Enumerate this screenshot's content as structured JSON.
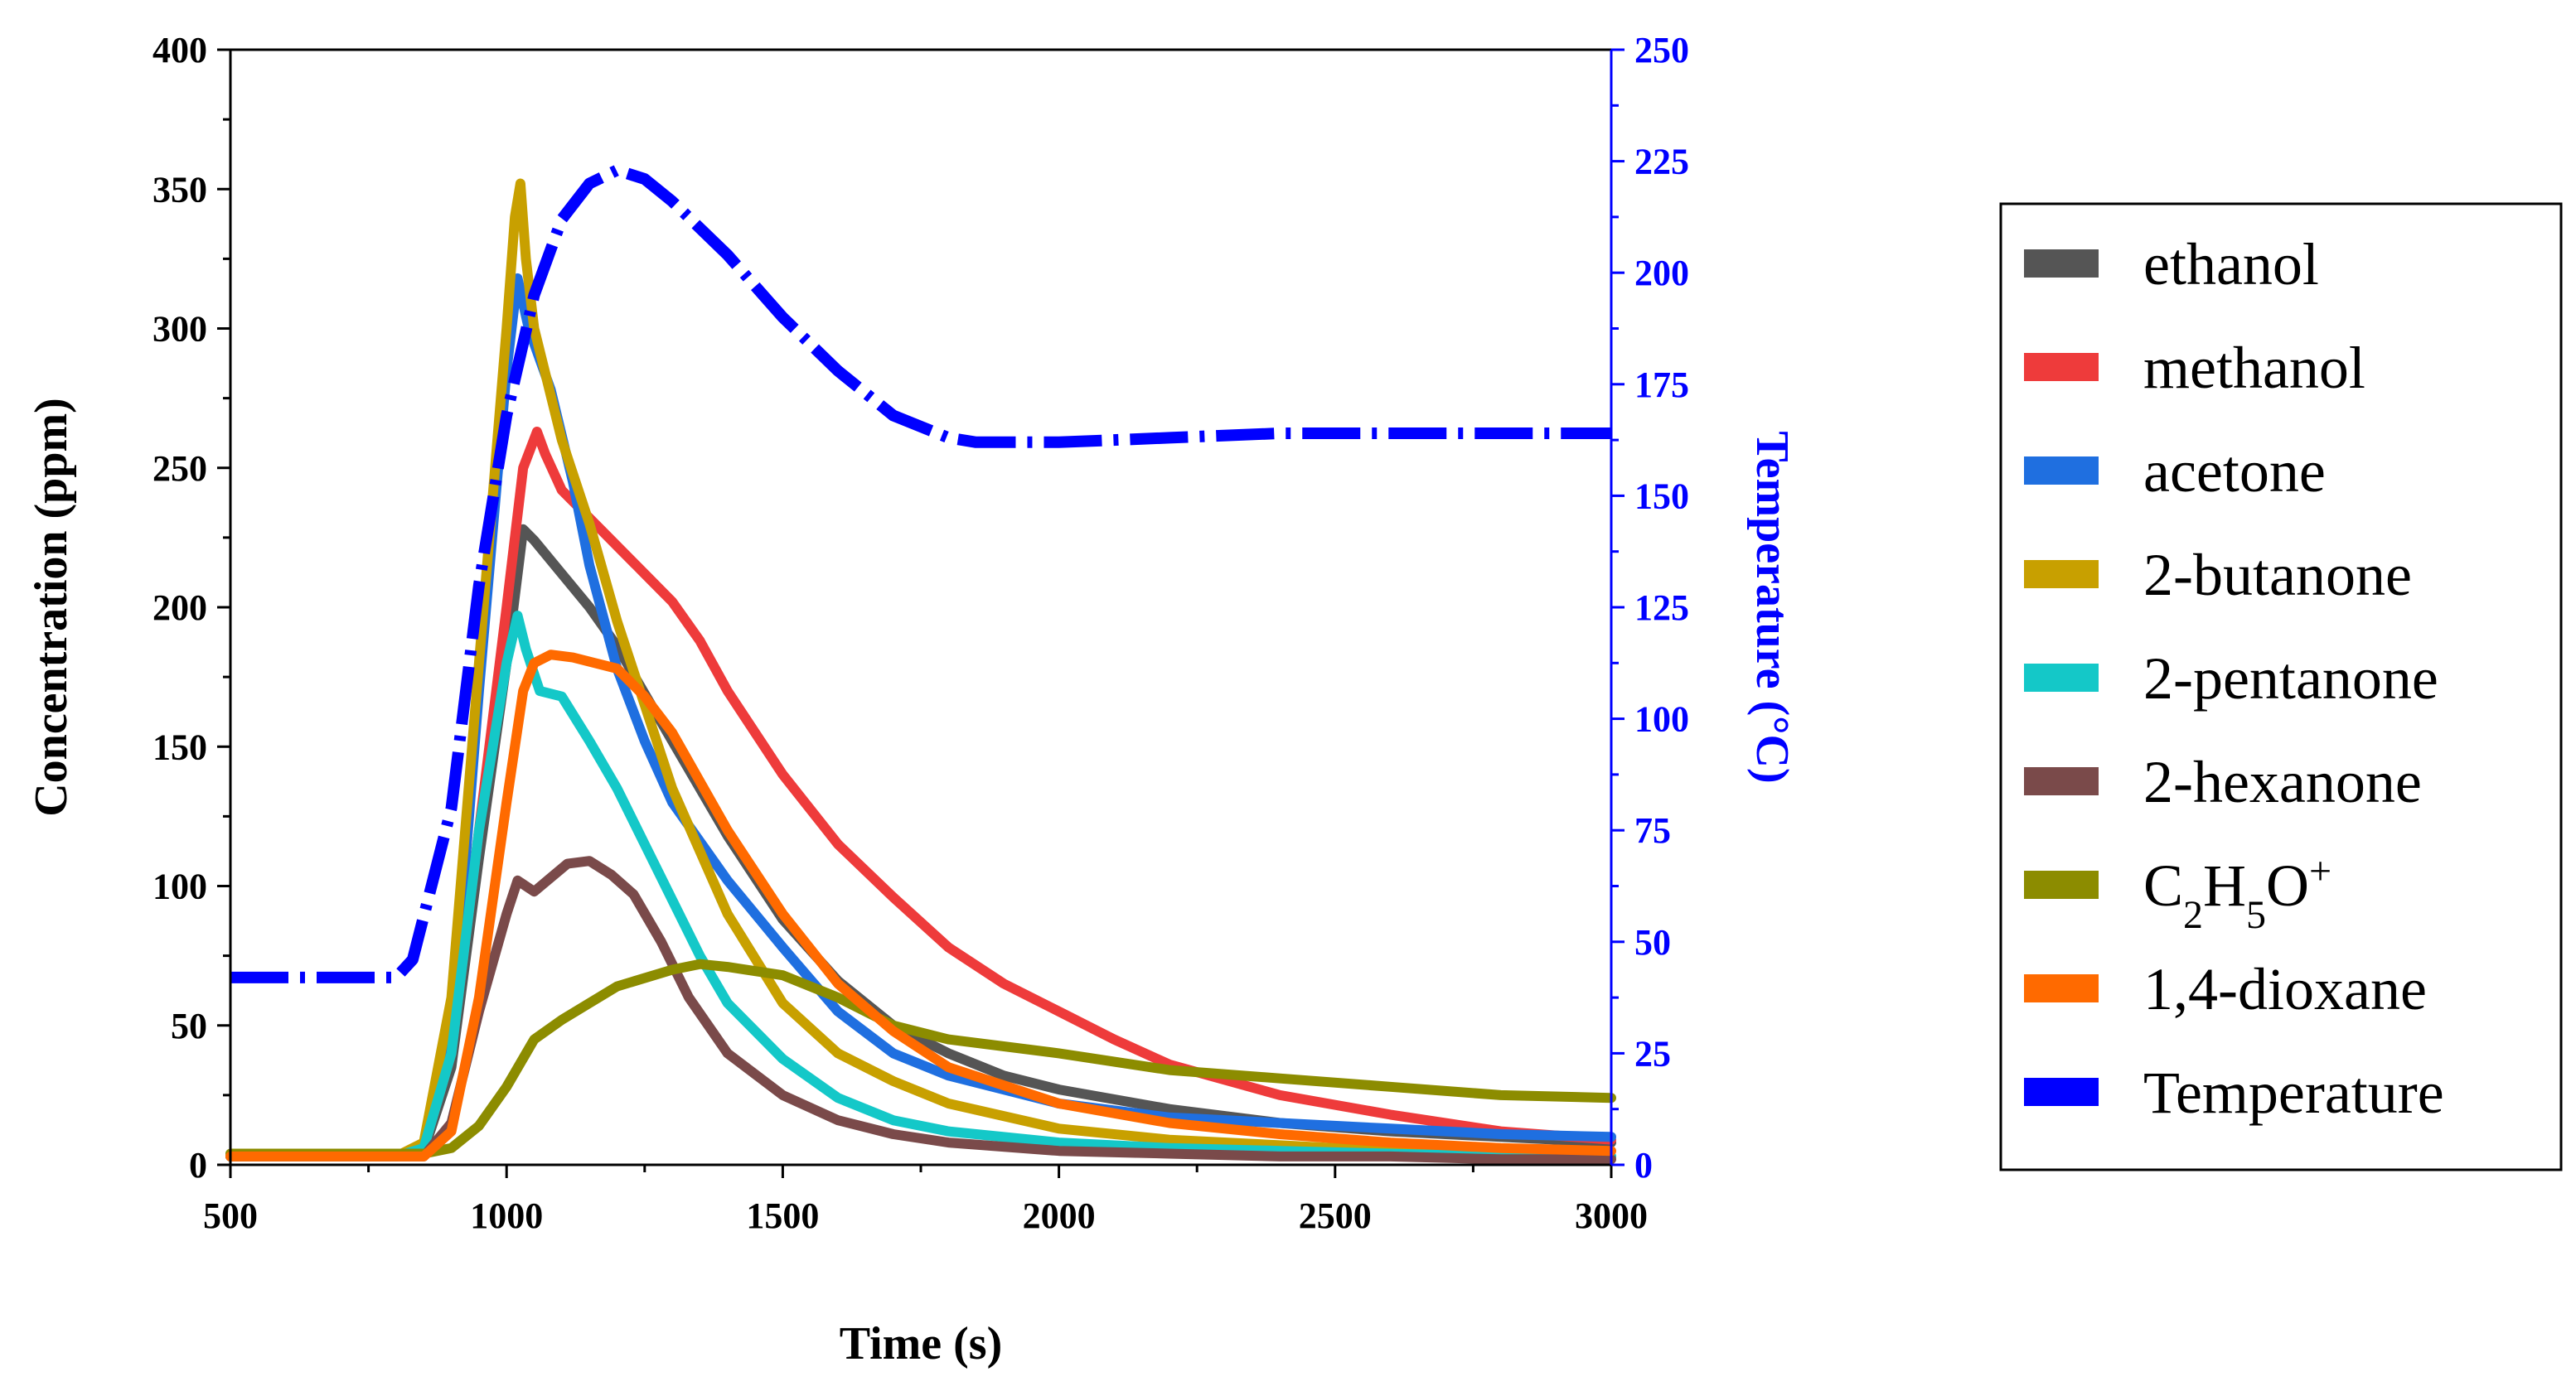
{
  "chart_data": {
    "type": "line",
    "title": "",
    "xlabel": "Time (s)",
    "ylabel": "Concentration (ppm)",
    "y2label": "Temperature (°C)",
    "xlim": [
      500,
      3000
    ],
    "ylim": [
      0,
      400
    ],
    "y2lim": [
      0,
      250
    ],
    "xticks": [
      "500",
      "1000",
      "1500",
      "2000",
      "2500",
      "3000"
    ],
    "yticks": [
      "0",
      "50",
      "100",
      "150",
      "200",
      "250",
      "300",
      "350",
      "400"
    ],
    "y2ticks": [
      "0",
      "25",
      "50",
      "75",
      "100",
      "125",
      "150",
      "175",
      "200",
      "225",
      "250"
    ],
    "legend_position": "right, outside",
    "grid": false,
    "series": [
      {
        "name": "ethanol",
        "color": "#555555",
        "axis": "left",
        "x": [
          500,
          800,
          850,
          900,
          950,
          1000,
          1030,
          1050,
          1100,
          1150,
          1200,
          1300,
          1400,
          1500,
          1600,
          1700,
          1800,
          1900,
          2000,
          2200,
          2400,
          2600,
          2800,
          3000
        ],
        "y": [
          3,
          3,
          5,
          35,
          110,
          180,
          228,
          224,
          212,
          200,
          186,
          152,
          118,
          88,
          66,
          50,
          40,
          32,
          27,
          20,
          15,
          12,
          10,
          8
        ]
      },
      {
        "name": "methanol",
        "color": "#ee3b3b",
        "axis": "left",
        "x": [
          500,
          800,
          850,
          900,
          950,
          1000,
          1030,
          1055,
          1070,
          1100,
          1150,
          1200,
          1250,
          1300,
          1350,
          1400,
          1500,
          1600,
          1700,
          1800,
          1900,
          2000,
          2100,
          2200,
          2400,
          2600,
          2800,
          3000
        ],
        "y": [
          3,
          3,
          6,
          40,
          120,
          200,
          250,
          263,
          255,
          242,
          232,
          222,
          212,
          202,
          188,
          170,
          140,
          115,
          96,
          78,
          65,
          55,
          45,
          36,
          25,
          18,
          12,
          9
        ]
      },
      {
        "name": "acetone",
        "color": "#1f6fe0",
        "axis": "left",
        "x": [
          500,
          800,
          850,
          900,
          950,
          1000,
          1020,
          1040,
          1080,
          1120,
          1150,
          1200,
          1250,
          1300,
          1400,
          1500,
          1600,
          1700,
          1800,
          2000,
          2200,
          2400,
          2600,
          2800,
          3000
        ],
        "y": [
          3,
          3,
          6,
          45,
          170,
          285,
          318,
          300,
          278,
          245,
          215,
          178,
          152,
          130,
          102,
          78,
          55,
          40,
          32,
          22,
          17,
          15,
          13,
          11,
          10
        ]
      },
      {
        "name": "2-butanone",
        "color": "#c8a000",
        "axis": "left",
        "x": [
          500,
          800,
          850,
          900,
          950,
          1000,
          1015,
          1025,
          1035,
          1050,
          1100,
          1150,
          1200,
          1250,
          1300,
          1400,
          1500,
          1600,
          1700,
          1800,
          2000,
          2200,
          2400,
          2600,
          2800,
          3000
        ],
        "y": [
          3,
          3,
          8,
          60,
          180,
          300,
          340,
          352,
          325,
          300,
          260,
          230,
          195,
          165,
          135,
          90,
          58,
          40,
          30,
          22,
          13,
          9,
          7,
          5,
          4,
          3
        ]
      },
      {
        "name": "2-pentanone",
        "color": "#14c8c8",
        "axis": "left",
        "x": [
          500,
          800,
          850,
          900,
          950,
          1000,
          1020,
          1035,
          1060,
          1100,
          1150,
          1200,
          1250,
          1300,
          1350,
          1400,
          1500,
          1600,
          1700,
          1800,
          2000,
          2200,
          2400,
          2600,
          2800,
          3000
        ],
        "y": [
          3,
          3,
          6,
          40,
          120,
          180,
          197,
          185,
          170,
          168,
          152,
          135,
          115,
          95,
          75,
          58,
          38,
          24,
          16,
          12,
          8,
          6,
          5,
          4,
          3,
          3
        ]
      },
      {
        "name": "2-hexanone",
        "color": "#7a4a4a",
        "axis": "left",
        "x": [
          500,
          850,
          900,
          950,
          1000,
          1020,
          1050,
          1080,
          1110,
          1150,
          1190,
          1230,
          1280,
          1330,
          1400,
          1500,
          1600,
          1700,
          1800,
          2000,
          2200,
          2400,
          2600,
          2800,
          3000
        ],
        "y": [
          3,
          3,
          15,
          55,
          90,
          102,
          98,
          103,
          108,
          109,
          104,
          97,
          80,
          60,
          40,
          25,
          16,
          11,
          8,
          5,
          4,
          3,
          3,
          2,
          2
        ]
      },
      {
        "name": "C2H5O+",
        "color": "#8c8c00",
        "axis": "left",
        "x": [
          500,
          850,
          900,
          950,
          1000,
          1050,
          1100,
          1150,
          1200,
          1300,
          1350,
          1400,
          1500,
          1600,
          1700,
          1800,
          2000,
          2200,
          2400,
          2600,
          2800,
          3000
        ],
        "y": [
          4,
          4,
          6,
          14,
          28,
          45,
          52,
          58,
          64,
          70,
          72,
          71,
          68,
          60,
          50,
          45,
          40,
          34,
          31,
          28,
          25,
          24
        ]
      },
      {
        "name": "1,4-dioxane",
        "color": "#ff6a00",
        "axis": "left",
        "x": [
          500,
          850,
          900,
          950,
          1000,
          1030,
          1050,
          1080,
          1120,
          1160,
          1200,
          1250,
          1300,
          1400,
          1500,
          1600,
          1700,
          1800,
          2000,
          2200,
          2400,
          2600,
          2800,
          3000
        ],
        "y": [
          3,
          3,
          12,
          60,
          130,
          170,
          180,
          183,
          182,
          180,
          178,
          168,
          155,
          120,
          90,
          65,
          48,
          35,
          22,
          15,
          11,
          8,
          6,
          5
        ]
      },
      {
        "name": "Temperature",
        "color": "#0000ff",
        "axis": "right",
        "style": "dash-dot",
        "x": [
          500,
          800,
          830,
          900,
          950,
          1000,
          1050,
          1100,
          1150,
          1200,
          1250,
          1300,
          1400,
          1500,
          1600,
          1700,
          1800,
          1850,
          1900,
          2000,
          2200,
          2400,
          2600,
          2800,
          3000
        ],
        "y": [
          42,
          42,
          46,
          80,
          130,
          168,
          195,
          212,
          220,
          223,
          221,
          216,
          204,
          190,
          178,
          168,
          163,
          162,
          162,
          162,
          163,
          164,
          164,
          164,
          164
        ]
      }
    ]
  }
}
